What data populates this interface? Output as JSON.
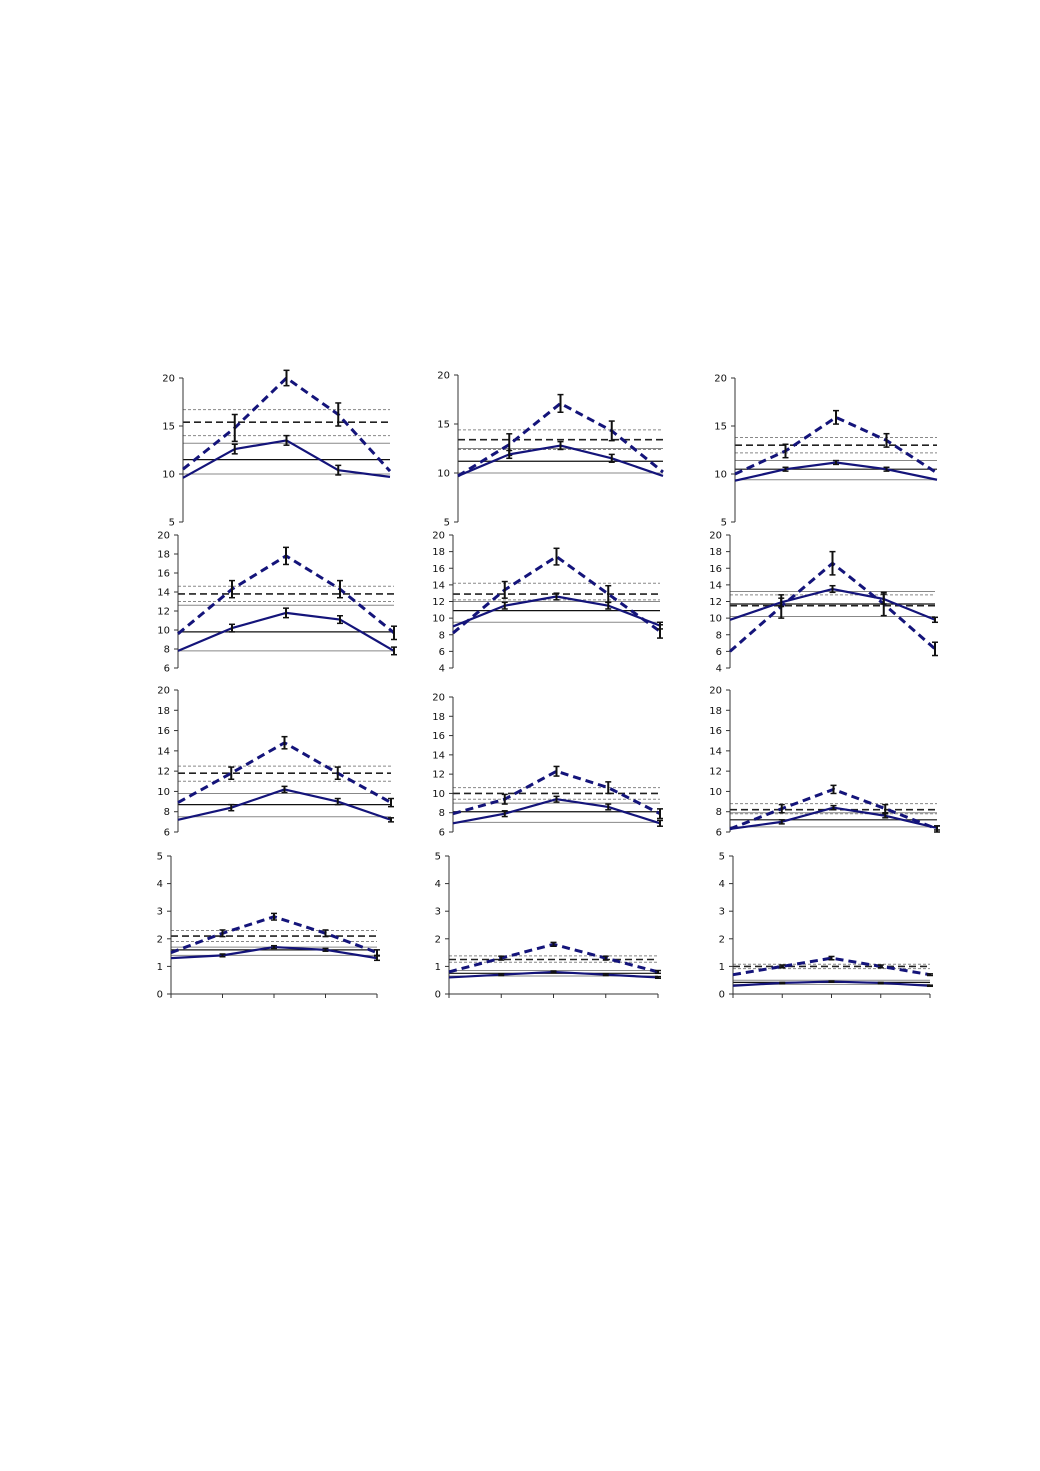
{
  "figure": {
    "colors": {
      "series": "#14147a",
      "error_bar": "#111111",
      "axis": "#333333",
      "ref_solid": "#111111",
      "ref_dashed": "#222222",
      "ref_light": "#888888"
    }
  },
  "chart_data": [
    {
      "panel": "r1c1",
      "type": "line",
      "ylim": [
        5,
        20
      ],
      "yticks": [
        5,
        10,
        15,
        20
      ],
      "x": [
        1,
        2,
        3,
        4,
        5
      ],
      "series": [
        {
          "style": "dashed",
          "values": [
            10.5,
            14.8,
            20,
            16.2,
            10.3
          ],
          "errors": [
            0,
            1.4,
            0.8,
            1.2,
            0
          ]
        },
        {
          "style": "solid",
          "values": [
            9.6,
            12.6,
            13.5,
            10.4,
            9.7
          ],
          "errors": [
            0,
            0.5,
            0.5,
            0.5,
            0
          ]
        }
      ],
      "reference_lines": {
        "dashed": 15.4,
        "dashed_band": [
          14,
          16.7
        ],
        "solid": 11.5,
        "solid_band": [
          10,
          13.2
        ]
      }
    },
    {
      "panel": "r1c2",
      "type": "line",
      "ylim": [
        5,
        20
      ],
      "yticks": [
        5,
        10,
        15,
        20
      ],
      "x": [
        1,
        2,
        3,
        4,
        5
      ],
      "series": [
        {
          "style": "dashed",
          "values": [
            9.7,
            12.9,
            17.1,
            14.3,
            10.1
          ],
          "errors": [
            0,
            1.1,
            0.9,
            1,
            0
          ]
        },
        {
          "style": "solid",
          "values": [
            9.7,
            11.9,
            12.8,
            11.5,
            9.7
          ],
          "errors": [
            0,
            0.4,
            0.4,
            0.4,
            0
          ]
        }
      ],
      "reference_lines": {
        "dashed": 13.4,
        "dashed_band": [
          12.4,
          14.4
        ],
        "solid": 11.2,
        "solid_band": [
          10,
          12.5
        ]
      }
    },
    {
      "panel": "r1c3",
      "type": "line",
      "ylim": [
        5,
        20
      ],
      "yticks": [
        5,
        10,
        15,
        20
      ],
      "x": [
        1,
        2,
        3,
        4,
        5
      ],
      "series": [
        {
          "style": "dashed",
          "values": [
            10,
            12.4,
            15.9,
            13.5,
            10.1
          ],
          "errors": [
            0,
            0.7,
            0.7,
            0.7,
            0
          ]
        },
        {
          "style": "solid",
          "values": [
            9.3,
            10.5,
            11.2,
            10.5,
            9.4
          ],
          "errors": [
            0,
            0.2,
            0.2,
            0.2,
            0
          ]
        }
      ],
      "reference_lines": {
        "dashed": 13,
        "dashed_band": [
          12.2,
          13.8
        ],
        "solid": 10.5,
        "solid_band": [
          9.4,
          11.4
        ]
      }
    },
    {
      "panel": "r2c1",
      "type": "line",
      "ylim": [
        6,
        20
      ],
      "yticks": [
        6,
        8,
        10,
        12,
        14,
        16,
        18,
        20
      ],
      "x": [
        1,
        2,
        3,
        4,
        5
      ],
      "series": [
        {
          "style": "dashed",
          "values": [
            9.6,
            14.3,
            17.8,
            14.3,
            9.7
          ],
          "errors": [
            0,
            0.9,
            0.9,
            0.9,
            0.7
          ],
          "yzero": 6
        },
        {
          "style": "solid",
          "values": [
            7.8,
            10.2,
            11.8,
            11.1,
            7.8
          ],
          "errors": [
            0,
            0.4,
            0.5,
            0.4,
            0.4
          ]
        }
      ],
      "reference_lines": {
        "dashed": 13.8,
        "dashed_band": [
          13,
          14.6
        ],
        "solid": 9.8,
        "solid_band": [
          7.8,
          12.6
        ]
      }
    },
    {
      "panel": "r2c2",
      "type": "line",
      "ylim": [
        4,
        20
      ],
      "yticks": [
        4,
        6,
        8,
        10,
        12,
        14,
        16,
        18,
        20
      ],
      "x": [
        1,
        2,
        3,
        4,
        5
      ],
      "series": [
        {
          "style": "dashed",
          "values": [
            8.2,
            13.4,
            17.4,
            12.9,
            8.4
          ],
          "errors": [
            0,
            1,
            1,
            1,
            0.8
          ]
        },
        {
          "style": "solid",
          "values": [
            9,
            11.5,
            12.6,
            11.5,
            9.1
          ],
          "errors": [
            0,
            0.4,
            0.4,
            0.4,
            0.4
          ]
        }
      ],
      "reference_lines": {
        "dashed": 12.9,
        "dashed_band": [
          12.2,
          14.2
        ],
        "solid": 10.9,
        "solid_band": [
          9.5,
          12
        ]
      }
    },
    {
      "panel": "r2c3",
      "type": "line",
      "ylim": [
        4,
        20
      ],
      "yticks": [
        4,
        6,
        8,
        10,
        12,
        14,
        16,
        18,
        20
      ],
      "x": [
        1,
        2,
        3,
        4,
        5
      ],
      "series": [
        {
          "style": "dashed",
          "values": [
            6,
            11.4,
            16.6,
            11.7,
            6.3
          ],
          "errors": [
            0,
            1.4,
            1.4,
            1.4,
            0.8
          ]
        },
        {
          "style": "solid",
          "values": [
            9.8,
            11.9,
            13.5,
            12.3,
            9.8
          ],
          "errors": [
            0,
            0.5,
            0.4,
            0.6,
            0.3
          ]
        }
      ],
      "reference_lines": {
        "dashed": 11.5,
        "dashed_band": [
          10.2,
          12.8
        ],
        "solid": 11.7,
        "solid_band": [
          10.2,
          13.2
        ]
      }
    },
    {
      "panel": "r3c1",
      "type": "line",
      "ylim": [
        6,
        20
      ],
      "yticks": [
        6,
        8,
        10,
        12,
        14,
        16,
        18,
        20
      ],
      "x": [
        1,
        2,
        3,
        4,
        5
      ],
      "series": [
        {
          "style": "dashed",
          "values": [
            8.9,
            11.8,
            14.8,
            11.8,
            8.9
          ],
          "errors": [
            0,
            0.6,
            0.6,
            0.6,
            0.4
          ]
        },
        {
          "style": "solid",
          "values": [
            7.2,
            8.4,
            10.2,
            9,
            7.2
          ],
          "errors": [
            0,
            0.3,
            0.3,
            0.3,
            0.2
          ]
        }
      ],
      "reference_lines": {
        "dashed": 11.8,
        "dashed_band": [
          11,
          12.5
        ],
        "solid": 8.7,
        "solid_band": [
          7.5,
          9.8
        ]
      }
    },
    {
      "panel": "r3c2",
      "type": "line",
      "ylim": [
        6,
        20
      ],
      "yticks": [
        6,
        8,
        10,
        12,
        14,
        16,
        18,
        20
      ],
      "x": [
        1,
        2,
        3,
        4,
        5
      ],
      "series": [
        {
          "style": "dashed",
          "values": [
            7.9,
            9.4,
            12.3,
            10.6,
            7.9
          ],
          "errors": [
            0,
            0.5,
            0.5,
            0.6,
            0.5
          ]
        },
        {
          "style": "solid",
          "values": [
            6.9,
            7.9,
            9.4,
            8.6,
            6.9
          ],
          "errors": [
            0,
            0.3,
            0.3,
            0.3,
            0.3
          ]
        }
      ],
      "reference_lines": {
        "dashed": 10,
        "dashed_band": [
          9.4,
          10.6
        ],
        "solid": 8.1,
        "solid_band": [
          7,
          9
        ]
      }
    },
    {
      "panel": "r3c3",
      "type": "line",
      "ylim": [
        6,
        20
      ],
      "yticks": [
        6,
        8,
        10,
        12,
        14,
        16,
        18,
        20
      ],
      "x": [
        1,
        2,
        3,
        4,
        5
      ],
      "series": [
        {
          "style": "dashed",
          "values": [
            6.3,
            8.3,
            10.2,
            8.3,
            6.3
          ],
          "errors": [
            0,
            0.4,
            0.4,
            0.4,
            0.3
          ]
        },
        {
          "style": "solid",
          "values": [
            6.3,
            7,
            8.4,
            7.6,
            6.4
          ],
          "errors": [
            0,
            0.2,
            0.2,
            0.2,
            0.2
          ]
        }
      ],
      "reference_lines": {
        "dashed": 8.2,
        "dashed_band": [
          7.8,
          8.8
        ],
        "solid": 7.2,
        "solid_band": [
          6.5,
          7.9
        ]
      }
    },
    {
      "panel": "r4c1",
      "type": "line",
      "ylim": [
        0,
        5
      ],
      "yticks": [
        0,
        1,
        2,
        3,
        4,
        5
      ],
      "x": [
        1,
        2,
        3,
        4,
        5
      ],
      "series": [
        {
          "style": "dashed",
          "values": [
            1.5,
            2.2,
            2.8,
            2.2,
            1.5
          ],
          "errors": [
            0,
            0.12,
            0.12,
            0.12,
            0.1
          ]
        },
        {
          "style": "solid",
          "values": [
            1.3,
            1.4,
            1.7,
            1.6,
            1.3
          ],
          "errors": [
            0,
            0.05,
            0.05,
            0.05,
            0.08
          ]
        }
      ],
      "reference_lines": {
        "dashed": 2.1,
        "dashed_band": [
          1.9,
          2.3
        ],
        "solid": 1.6,
        "solid_band": [
          1.4,
          1.7
        ]
      }
    },
    {
      "panel": "r4c2",
      "type": "line",
      "ylim": [
        0,
        5
      ],
      "yticks": [
        0,
        1,
        2,
        3,
        4,
        5
      ],
      "x": [
        1,
        2,
        3,
        4,
        5
      ],
      "series": [
        {
          "style": "dashed",
          "values": [
            0.8,
            1.3,
            1.8,
            1.3,
            0.8
          ],
          "errors": [
            0,
            0.07,
            0.07,
            0.07,
            0.05
          ]
        },
        {
          "style": "solid",
          "values": [
            0.6,
            0.7,
            0.8,
            0.7,
            0.6
          ],
          "errors": [
            0,
            0.03,
            0.03,
            0.03,
            0.03
          ]
        }
      ],
      "reference_lines": {
        "dashed": 1.25,
        "dashed_band": [
          1.15,
          1.38
        ],
        "solid": 0.75,
        "solid_band": [
          0.65,
          0.85
        ]
      }
    },
    {
      "panel": "r4c3",
      "type": "line",
      "ylim": [
        0,
        5
      ],
      "yticks": [
        0,
        1,
        2,
        3,
        4,
        5
      ],
      "x": [
        1,
        2,
        3,
        4,
        5
      ],
      "series": [
        {
          "style": "dashed",
          "values": [
            0.7,
            1,
            1.3,
            1,
            0.7
          ],
          "errors": [
            0,
            0.05,
            0.06,
            0.05,
            0.03
          ]
        },
        {
          "style": "solid",
          "values": [
            0.3,
            0.4,
            0.45,
            0.4,
            0.3
          ],
          "errors": [
            0,
            0.02,
            0.02,
            0.02,
            0.02
          ]
        }
      ],
      "reference_lines": {
        "dashed": 1,
        "dashed_band": [
          0.92,
          1.08
        ],
        "solid": 0.42,
        "solid_band": [
          0.35,
          0.5
        ]
      }
    }
  ]
}
